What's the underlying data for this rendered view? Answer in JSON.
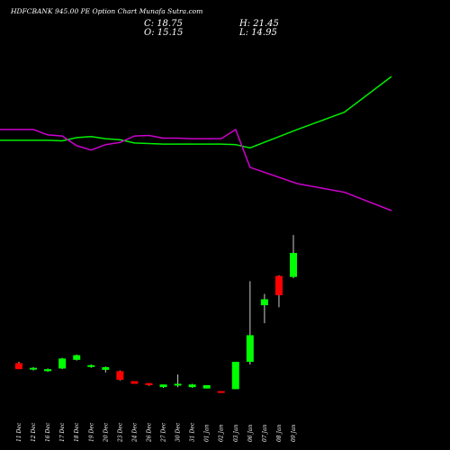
{
  "header": {
    "title": "HDFCBANK 945.00  PE Option  Chart Munafa Sutra.com",
    "open": "O: 15.15",
    "high": "H: 21.45",
    "close": "C: 18.75",
    "low": "L: 14.95"
  },
  "colors": {
    "background": "#000000",
    "up": "#00ff00",
    "down": "#ff0000",
    "green_line": "#00ee00",
    "magenta_line": "#cc00cc",
    "wick": "#cccccc",
    "text": "#ffffff"
  },
  "chart_data": {
    "type": "candlestick",
    "categories": [
      "11 Dec",
      "12 Dec",
      "16 Dec",
      "17 Dec",
      "18 Dec",
      "19 Dec",
      "20 Dec",
      "23 Dec",
      "24 Dec",
      "26 Dec",
      "27 Dec",
      "30 Dec",
      "31 Dec",
      "01 Jan",
      "02 Jan",
      "03 Jan",
      "06 Jan",
      "07 Jan",
      "08 Jan",
      "09 Jan"
    ],
    "candles": [
      {
        "open": 2.2,
        "high": 2.4,
        "low": 1.3,
        "close": 1.3,
        "dir": "down"
      },
      {
        "open": 1.3,
        "high": 1.6,
        "low": 1.1,
        "close": 1.5,
        "dir": "up"
      },
      {
        "open": 1.0,
        "high": 1.4,
        "low": 0.9,
        "close": 1.3,
        "dir": "up"
      },
      {
        "open": 1.4,
        "high": 3.0,
        "low": 1.3,
        "close": 2.9,
        "dir": "up"
      },
      {
        "open": 2.7,
        "high": 3.5,
        "low": 2.6,
        "close": 3.4,
        "dir": "up"
      },
      {
        "open": 1.9,
        "high": 2.0,
        "low": 1.5,
        "close": 1.9,
        "dir": "up"
      },
      {
        "open": 1.2,
        "high": 1.7,
        "low": 0.8,
        "close": 1.6,
        "dir": "up"
      },
      {
        "open": 1.0,
        "high": 1.1,
        "low": -0.4,
        "close": -0.3,
        "dir": "down"
      },
      {
        "open": -0.5,
        "high": -0.5,
        "low": -0.9,
        "close": -0.9,
        "dir": "down"
      },
      {
        "open": -0.8,
        "high": -0.8,
        "low": -1.2,
        "close": -1.1,
        "dir": "down"
      },
      {
        "open": -1.4,
        "high": -1.0,
        "low": -1.5,
        "close": -1.0,
        "dir": "up"
      },
      {
        "open": -1.1,
        "high": 0.5,
        "low": -1.4,
        "close": -0.9,
        "dir": "up"
      },
      {
        "open": -1.4,
        "high": -0.9,
        "low": -1.5,
        "close": -1.0,
        "dir": "up"
      },
      {
        "open": -1.6,
        "high": -1.1,
        "low": -1.6,
        "close": -1.1,
        "dir": "up"
      },
      {
        "open": -2.0,
        "high": -2.0,
        "low": -2.2,
        "close": -2.2,
        "dir": "down"
      },
      {
        "open": -1.7,
        "high": 2.4,
        "low": -1.7,
        "close": 2.4,
        "dir": "up"
      },
      {
        "open": 2.4,
        "high": 14.5,
        "low": 2.0,
        "close": 6.4,
        "dir": "up"
      },
      {
        "open": 10.9,
        "high": 12.6,
        "low": 8.2,
        "close": 11.8,
        "dir": "up"
      },
      {
        "open": 15.3,
        "high": 15.4,
        "low": 10.6,
        "close": 12.4,
        "dir": "down"
      },
      {
        "open": 15.15,
        "high": 21.45,
        "low": 14.95,
        "close": 18.75,
        "dir": "up"
      }
    ],
    "price_ylim": [
      -3,
      22
    ],
    "series": [
      {
        "color": "#00ee00",
        "values": [
          40,
          40,
          40,
          39.5,
          42.5,
          43.5,
          41.5,
          40.5,
          37.5,
          37,
          36.5,
          36.5,
          36.5,
          36.5,
          36.5,
          36,
          33,
          50,
          66,
          99
        ]
      },
      {
        "color": "#cc00cc",
        "values": [
          50,
          50,
          45,
          44,
          35,
          31,
          36,
          38,
          44,
          44.5,
          42,
          42,
          41.5,
          41.5,
          41.5,
          50,
          15,
          0,
          -8,
          -25
        ]
      }
    ],
    "indicator_ylim": [
      -25,
      99
    ]
  }
}
